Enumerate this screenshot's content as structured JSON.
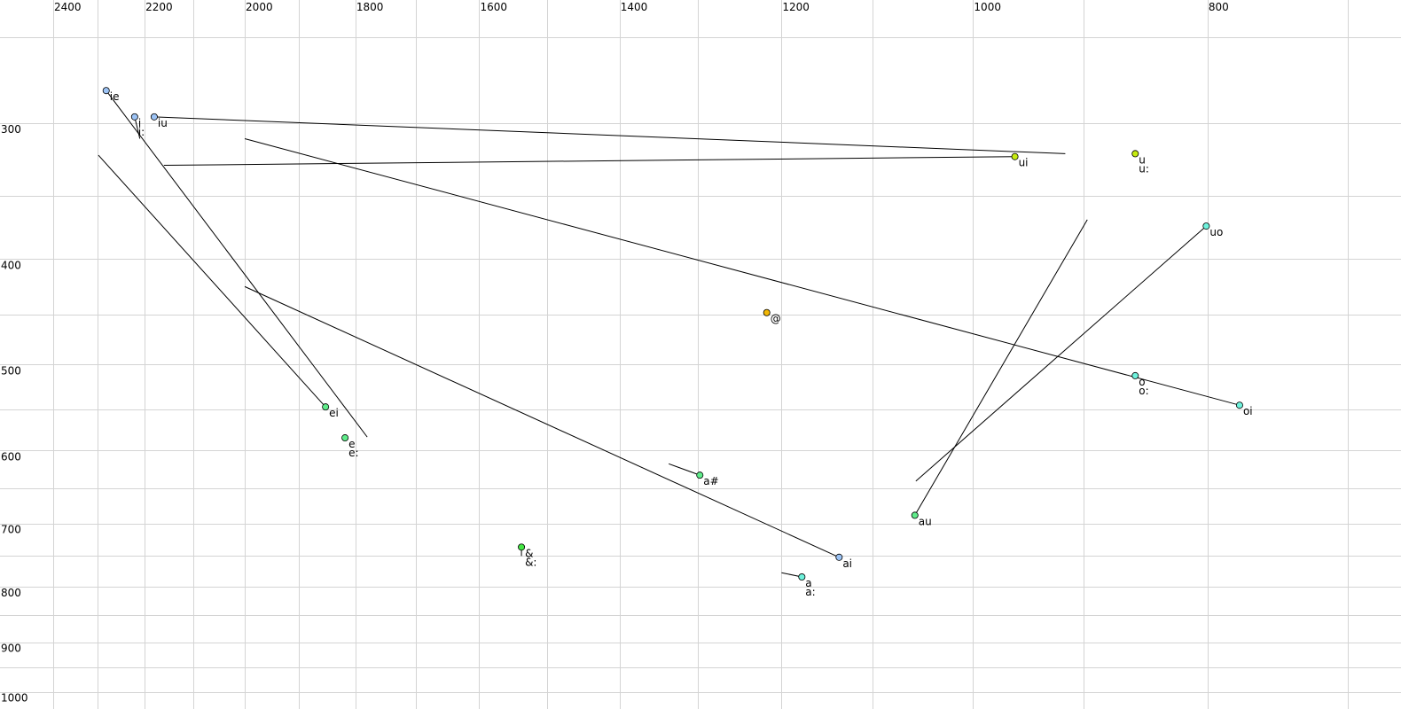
{
  "chart_data": {
    "type": "scatter",
    "title": "",
    "xlabel": "",
    "ylabel": "",
    "x_axis": {
      "quantity": "F2",
      "scale": "log",
      "reversed": true,
      "position": "top",
      "xlim": [
        2400,
        700
      ],
      "ticks": [
        2400,
        2200,
        2000,
        1800,
        1600,
        1400,
        1200,
        1000,
        800
      ],
      "grid_step": 100
    },
    "y_axis": {
      "quantity": "F1",
      "scale": "log",
      "reversed": false,
      "position": "left",
      "ylim": [
        250,
        1000
      ],
      "ticks": [
        300,
        400,
        500,
        600,
        700,
        800,
        900,
        1000
      ],
      "grid_step": 50
    },
    "grid": true,
    "colors": {
      "blue": "#9cc3f5",
      "yellowgreen": "#c6ec10",
      "cyan": "#6ef2dc",
      "orange": "#f2b705",
      "green": "#5fec8a",
      "brightgreen": "#44e644"
    },
    "points": [
      {
        "labels": [
          "ie"
        ],
        "f2": 2282,
        "f1": 280,
        "color": "blue",
        "end": [
          1780,
          583
        ]
      },
      {
        "labels": [
          "i",
          "i:"
        ],
        "f2": 2221,
        "f1": 296,
        "color": "blue",
        "end": [
          2210,
          310
        ]
      },
      {
        "labels": [
          "iu"
        ],
        "f2": 2180,
        "f1": 296,
        "color": "blue",
        "end": [
          916,
          320
        ]
      },
      {
        "labels": [
          "ui"
        ],
        "f2": 961,
        "f1": 322,
        "color": "yellowgreen",
        "end": [
          2160,
          328
        ]
      },
      {
        "labels": [
          "u",
          "u:"
        ],
        "f2": 857,
        "f1": 320,
        "color": "yellowgreen"
      },
      {
        "labels": [
          "uo"
        ],
        "f2": 801,
        "f1": 373,
        "color": "cyan",
        "end": [
          1056,
          640
        ]
      },
      {
        "labels": [
          "@"
        ],
        "f2": 1217,
        "f1": 448,
        "color": "orange"
      },
      {
        "labels": [
          "o",
          "o:"
        ],
        "f2": 857,
        "f1": 512,
        "color": "cyan"
      },
      {
        "labels": [
          "oi"
        ],
        "f2": 776,
        "f1": 545,
        "color": "cyan",
        "end": [
          2000,
          310
        ]
      },
      {
        "labels": [
          "ei"
        ],
        "f2": 1852,
        "f1": 547,
        "color": "green",
        "end": [
          2299,
          321
        ]
      },
      {
        "labels": [
          "e",
          "e:"
        ],
        "f2": 1818,
        "f1": 584,
        "color": "green"
      },
      {
        "labels": [
          "a#"
        ],
        "f2": 1297,
        "f1": 632,
        "color": "green",
        "end": [
          1336,
          617
        ]
      },
      {
        "labels": [
          "au"
        ],
        "f2": 1057,
        "f1": 688,
        "color": "green",
        "end": [
          897,
          368
        ]
      },
      {
        "labels": [
          "&",
          "&:"
        ],
        "f2": 1537,
        "f1": 736,
        "color": "brightgreen",
        "end": [
          1537,
          750
        ]
      },
      {
        "labels": [
          "ai"
        ],
        "f2": 1136,
        "f1": 752,
        "color": "blue",
        "end": [
          2000,
          424
        ]
      },
      {
        "labels": [
          "a",
          "a:"
        ],
        "f2": 1177,
        "f1": 784,
        "color": "cyan",
        "end": [
          1200,
          777
        ]
      }
    ]
  }
}
